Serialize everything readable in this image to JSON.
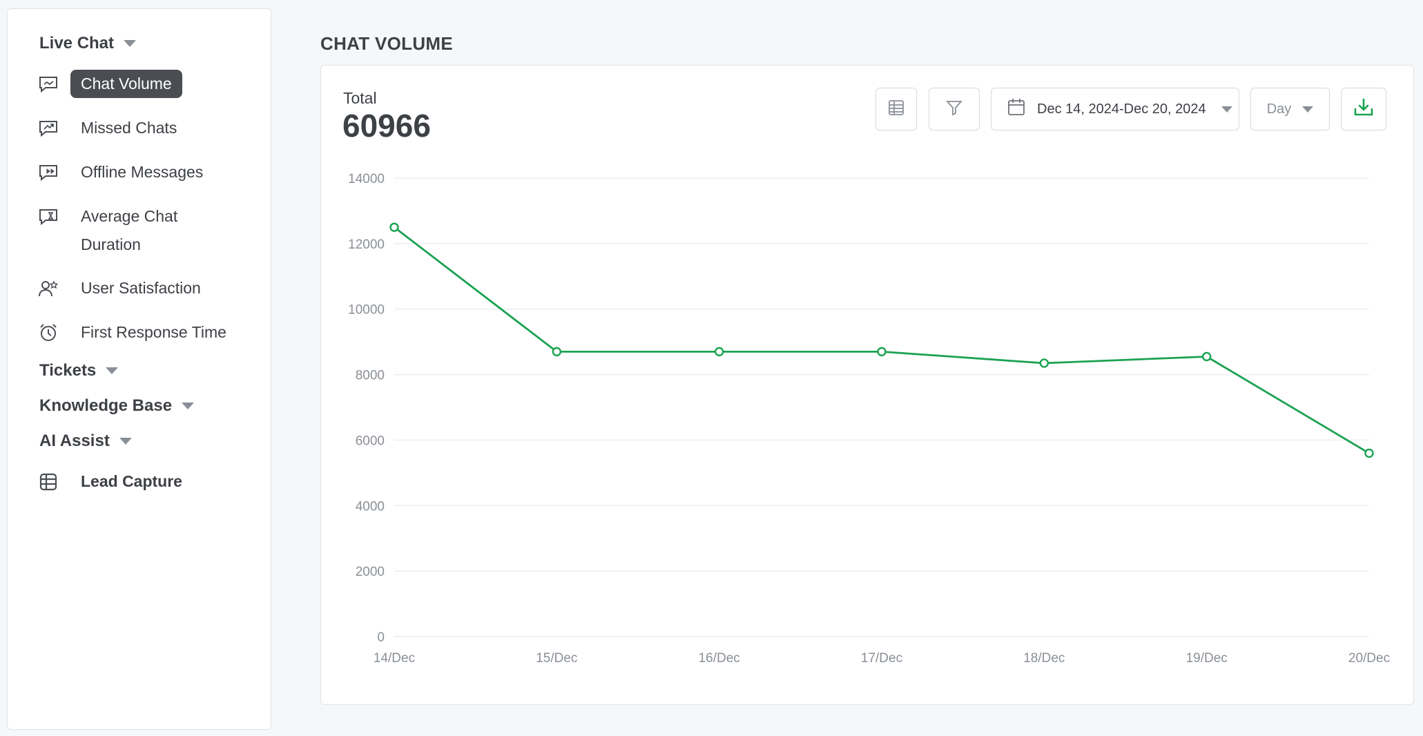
{
  "sidebar": {
    "groups": {
      "live_chat": "Live Chat",
      "tickets": "Tickets",
      "knowledge_base": "Knowledge Base",
      "ai_assist": "AI Assist"
    },
    "items": {
      "chat_volume": "Chat Volume",
      "missed_chats": "Missed Chats",
      "offline_messages": "Offline Messages",
      "average_chat_duration": "Average Chat Duration",
      "user_satisfaction": "User Satisfaction",
      "first_response_time": "First Response Time",
      "lead_capture": "Lead Capture"
    },
    "active_item": "Chat Volume"
  },
  "main": {
    "title": "CHAT VOLUME",
    "total_label": "Total",
    "total_value": "60966",
    "toolbar": {
      "table_icon": "table-icon",
      "filter_icon": "filter-icon",
      "date_range": "Dec 14, 2024-Dec 20, 2024",
      "granularity": "Day",
      "download_icon": "download-icon"
    }
  },
  "colors": {
    "accent": "#1aa251",
    "active_bg": "#4a4d52",
    "grid": "#eceef1"
  },
  "chart_data": {
    "type": "line",
    "categories": [
      "14/Dec",
      "15/Dec",
      "16/Dec",
      "17/Dec",
      "18/Dec",
      "19/Dec",
      "20/Dec"
    ],
    "series": [
      {
        "values": [
          12500,
          8700,
          8700,
          8700,
          8350,
          8550,
          5600
        ]
      }
    ],
    "ylim": [
      0,
      14000
    ],
    "yticks": [
      0,
      2000,
      4000,
      6000,
      8000,
      10000,
      12000,
      14000
    ],
    "grid": true,
    "legend": "none"
  }
}
